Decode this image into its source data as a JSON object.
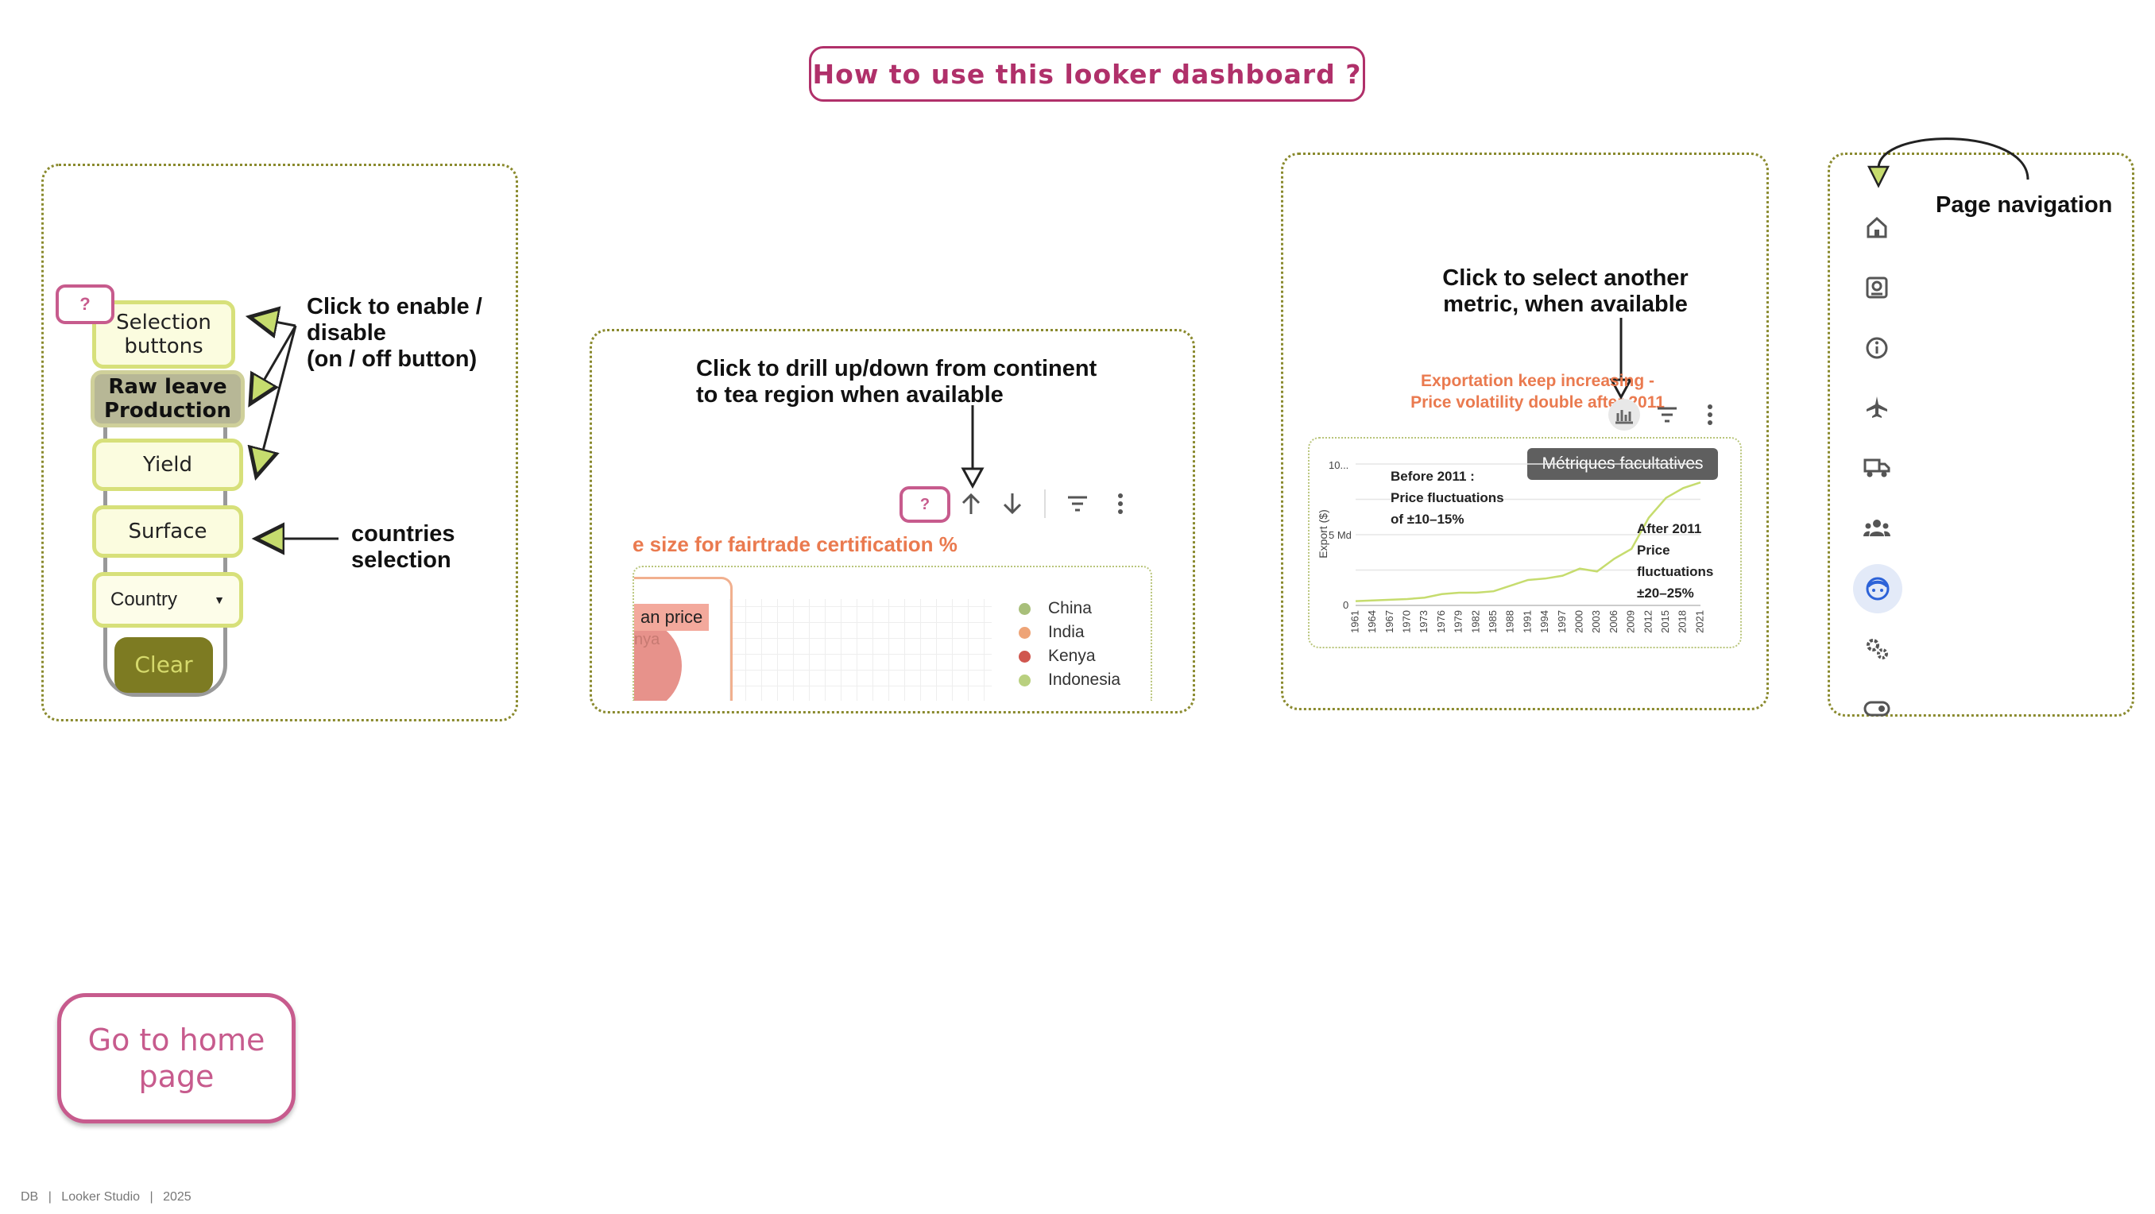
{
  "header": {
    "title": "How to use this looker dashboard ?"
  },
  "panel_left": {
    "help_badge": "?",
    "selection_buttons_label": "Selection buttons",
    "raw_leave_label": "Raw leave Production",
    "yield_label": "Yield",
    "surface_label": "Surface",
    "country_label": "Country",
    "clear_label": "Clear",
    "note_toggle": "Click to enable /\ndisable\n(on / off button)",
    "note_countries": "countries\nselection"
  },
  "panel_drill": {
    "note": "Click to drill up/down from continent\nto tea region when available",
    "help_badge": "?",
    "chart_title_fragment": "e size for fairtrade certification %",
    "tooltip_fragment": "an price",
    "tooltip_sub_fragment": "nya",
    "legend": [
      {
        "label": "China",
        "color": "#a8bf7a"
      },
      {
        "label": "India",
        "color": "#eea477"
      },
      {
        "label": "Kenya",
        "color": "#d0574f"
      },
      {
        "label": "Indonesia",
        "color": "#b9d07f"
      }
    ]
  },
  "panel_metric": {
    "note": "Click to select another\nmetric, when available",
    "chart_headline_1": "Exportation keep increasing -",
    "chart_headline_2": "Price volatility double after 2011",
    "tooltip": "Métriques facultatives",
    "ylabel": "Export ($)",
    "ytick_top": "10...",
    "ytick_mid": "5 Md",
    "ytick_zero": "0",
    "annotation_before": "Before 2011 :\nPrice fluctuations\nof ±10–15%",
    "annotation_after": "After 2011\nPrice\nfluctuations\n±20–25%",
    "line_color": "#c6dc6e"
  },
  "chart_data": {
    "type": "line",
    "title": "Exportation keep increasing - Price volatility double after 2011",
    "xlabel": "",
    "ylabel": "Export ($)",
    "x": [
      "1961",
      "1964",
      "1967",
      "1970",
      "1973",
      "1976",
      "1979",
      "1982",
      "1985",
      "1988",
      "1991",
      "1994",
      "1997",
      "2000",
      "2003",
      "2006",
      "2009",
      "2012",
      "2015",
      "2018",
      "2021"
    ],
    "series": [
      {
        "values": [
          0.3,
          0.35,
          0.4,
          0.45,
          0.55,
          0.8,
          0.9,
          0.9,
          1.0,
          1.4,
          1.8,
          1.9,
          2.1,
          2.6,
          2.4,
          3.3,
          4.0,
          6.2,
          7.6,
          8.3,
          8.7
        ]
      }
    ],
    "ylim": [
      0,
      10
    ],
    "grid": true,
    "legend": "none"
  },
  "panel_nav": {
    "note": "Page navigation",
    "icons": [
      "home-icon",
      "settings-doc-icon",
      "info-icon",
      "plane-icon",
      "truck-icon",
      "group-icon",
      "face-icon",
      "gears-icon",
      "toggle-icon"
    ]
  },
  "home_button": {
    "label": "Go to home page"
  },
  "footer": {
    "initials": "DB",
    "app": "Looker Studio",
    "year": "2025"
  }
}
